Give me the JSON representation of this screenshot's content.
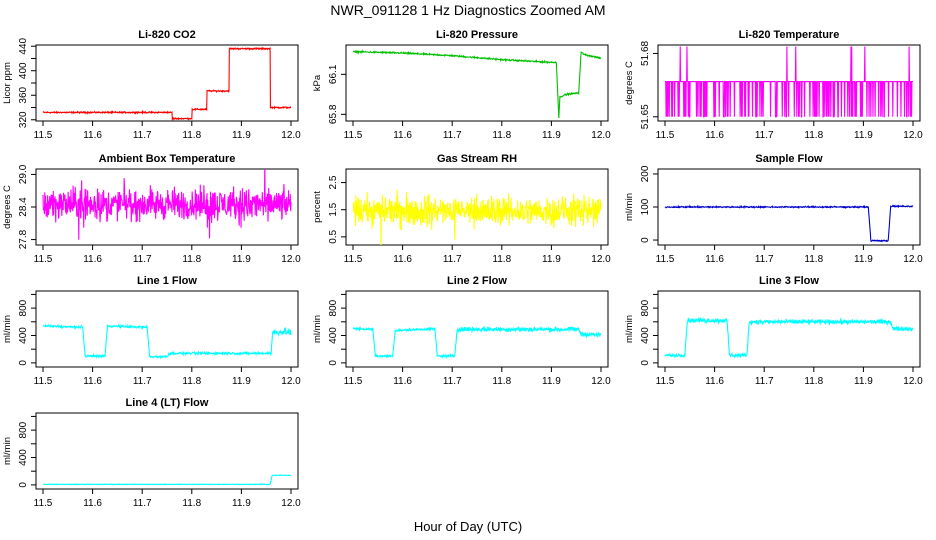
{
  "figure": {
    "title": "NWR_091128  1 Hz Diagnostics Zoomed AM",
    "xlabel": "Hour of Day (UTC)"
  },
  "chart_data": [
    {
      "type": "line",
      "title": "Li-820 CO2",
      "ylabel": "Licor ppm",
      "color": "#ff0000",
      "xlim": [
        11.5,
        12.0
      ],
      "x_ticks": [
        11.5,
        11.6,
        11.7,
        11.8,
        11.9,
        12.0
      ],
      "ylim": [
        318,
        442
      ],
      "y_ticks": [
        320,
        340,
        360,
        380,
        400,
        420,
        440
      ],
      "y_tick_labels": [
        "320",
        "",
        "360",
        "",
        "400",
        "",
        "440"
      ],
      "noise": 0.8,
      "x": [
        11.5,
        11.76,
        11.76,
        11.8,
        11.8,
        11.83,
        11.83,
        11.875,
        11.875,
        11.958,
        11.958,
        12.0
      ],
      "y": [
        332,
        332,
        322,
        322,
        337,
        337,
        367,
        367,
        436,
        436,
        340,
        340
      ]
    },
    {
      "type": "line",
      "title": "Li-820 Pressure",
      "ylabel": "kPa",
      "color": "#00c000",
      "xlim": [
        11.5,
        12.0
      ],
      "x_ticks": [
        11.5,
        11.6,
        11.7,
        11.8,
        11.9,
        12.0
      ],
      "ylim": [
        65.75,
        66.32
      ],
      "y_ticks": [
        65.8,
        66.1
      ],
      "y_tick_labels": [
        "65.8",
        "66.1"
      ],
      "noise": 0.004,
      "x": [
        11.5,
        11.6,
        11.7,
        11.8,
        11.85,
        11.9,
        11.91,
        11.915,
        11.917,
        11.93,
        11.955,
        11.96,
        11.965,
        12.0
      ],
      "y": [
        66.27,
        66.26,
        66.24,
        66.21,
        66.2,
        66.19,
        66.19,
        65.77,
        65.93,
        65.95,
        65.96,
        66.27,
        66.25,
        66.22
      ]
    },
    {
      "type": "line",
      "title": "Li-820 Temperature",
      "ylabel": "degrees C",
      "color": "#ff00ff",
      "xlim": [
        11.5,
        12.0
      ],
      "x_ticks": [
        11.5,
        11.6,
        11.7,
        11.8,
        11.9,
        12.0
      ],
      "ylim": [
        51.648,
        51.684
      ],
      "y_ticks": [
        51.65,
        51.68
      ],
      "y_tick_labels": [
        "51.65",
        "51.68"
      ],
      "baseline": 51.6667,
      "low": 51.65,
      "high": 51.6833
    },
    {
      "type": "line",
      "title": "Ambient Box Temperature",
      "ylabel": "degrees C",
      "color": "#ff00ff",
      "xlim": [
        11.5,
        12.0
      ],
      "x_ticks": [
        11.5,
        11.6,
        11.7,
        11.8,
        11.9,
        12.0
      ],
      "ylim": [
        27.7,
        29.1
      ],
      "y_ticks": [
        27.8,
        28.4,
        29.0
      ],
      "y_tick_labels": [
        "27.8",
        "28.4",
        "29.0"
      ],
      "mean": 28.45,
      "noise": 0.22
    },
    {
      "type": "line",
      "title": "Gas Stream RH",
      "ylabel": "percent",
      "color": "#ffff00",
      "xlim": [
        11.5,
        12.0
      ],
      "x_ticks": [
        11.5,
        11.6,
        11.7,
        11.8,
        11.9,
        12.0
      ],
      "ylim": [
        0.2,
        3.0
      ],
      "y_ticks": [
        0.5,
        1.5,
        2.5
      ],
      "y_tick_labels": [
        "0.5",
        "1.5",
        "2.5"
      ],
      "mean": 1.45,
      "noise": 0.4
    },
    {
      "type": "line",
      "title": "Sample Flow",
      "ylabel": "ml/min",
      "color": "#0000cc",
      "xlim": [
        11.5,
        12.0
      ],
      "x_ticks": [
        11.5,
        11.6,
        11.7,
        11.8,
        11.9,
        12.0
      ],
      "ylim": [
        -15,
        215
      ],
      "y_ticks": [
        0,
        100,
        200
      ],
      "y_tick_labels": [
        "0",
        "100",
        "200"
      ],
      "noise": 1.5,
      "x": [
        11.5,
        11.91,
        11.915,
        11.95,
        11.955,
        12.0
      ],
      "y": [
        100,
        100,
        -2,
        -2,
        102,
        102
      ]
    },
    {
      "type": "line",
      "title": "Line 1 Flow",
      "ylabel": "ml/min",
      "color": "#00ffff",
      "xlim": [
        11.5,
        12.0
      ],
      "x_ticks": [
        11.5,
        11.6,
        11.7,
        11.8,
        11.9,
        12.0
      ],
      "ylim": [
        -60,
        1050
      ],
      "y_ticks": [
        0,
        200,
        400,
        600,
        800,
        1000
      ],
      "y_tick_labels": [
        "0",
        "",
        "400",
        "",
        "800",
        ""
      ],
      "noise": 12,
      "x": [
        11.5,
        11.58,
        11.585,
        11.625,
        11.63,
        11.71,
        11.715,
        11.75,
        11.755,
        11.96,
        11.963,
        12.0
      ],
      "y": [
        540,
        520,
        100,
        100,
        540,
        520,
        90,
        90,
        140,
        140,
        450,
        450
      ],
      "wide_after": 11.963,
      "wide_noise": 40
    },
    {
      "type": "line",
      "title": "Line 2 Flow",
      "ylabel": "ml/min",
      "color": "#00ffff",
      "xlim": [
        11.5,
        12.0
      ],
      "x_ticks": [
        11.5,
        11.6,
        11.7,
        11.8,
        11.9,
        12.0
      ],
      "ylim": [
        -60,
        1050
      ],
      "y_ticks": [
        0,
        200,
        400,
        600,
        800,
        1000
      ],
      "y_tick_labels": [
        "0",
        "",
        "400",
        "",
        "800",
        ""
      ],
      "noise": 12,
      "x": [
        11.5,
        11.54,
        11.545,
        11.58,
        11.585,
        11.665,
        11.67,
        11.705,
        11.71,
        11.955,
        11.96,
        12.0
      ],
      "y": [
        500,
        490,
        100,
        100,
        470,
        500,
        100,
        100,
        490,
        490,
        420,
        410
      ],
      "wide_after": 11.71,
      "wide_noise": 25
    },
    {
      "type": "line",
      "title": "Line 3 Flow",
      "ylabel": "ml/min",
      "color": "#00ffff",
      "xlim": [
        11.5,
        12.0
      ],
      "x_ticks": [
        11.5,
        11.6,
        11.7,
        11.8,
        11.9,
        12.0
      ],
      "ylim": [
        -60,
        1050
      ],
      "y_ticks": [
        0,
        200,
        400,
        600,
        800,
        1000
      ],
      "y_tick_labels": [
        "0",
        "",
        "400",
        "",
        "800",
        ""
      ],
      "noise": 14,
      "x": [
        11.5,
        11.54,
        11.545,
        11.625,
        11.63,
        11.665,
        11.67,
        11.955,
        11.96,
        12.0
      ],
      "y": [
        110,
        110,
        620,
        620,
        110,
        110,
        600,
        600,
        500,
        500
      ],
      "wide_after": 11.545,
      "wide_noise": 25
    },
    {
      "type": "line",
      "title": "Line 4 (LT) Flow",
      "ylabel": "ml/min",
      "color": "#00ffff",
      "xlim": [
        11.5,
        12.0
      ],
      "x_ticks": [
        11.5,
        11.6,
        11.7,
        11.8,
        11.9,
        12.0
      ],
      "ylim": [
        -60,
        1050
      ],
      "y_ticks": [
        0,
        200,
        400,
        600,
        800,
        1000
      ],
      "y_tick_labels": [
        "0",
        "",
        "400",
        "",
        "800",
        ""
      ],
      "noise": 3,
      "x": [
        11.5,
        11.958,
        11.962,
        12.0
      ],
      "y": [
        8,
        8,
        140,
        140
      ]
    }
  ]
}
